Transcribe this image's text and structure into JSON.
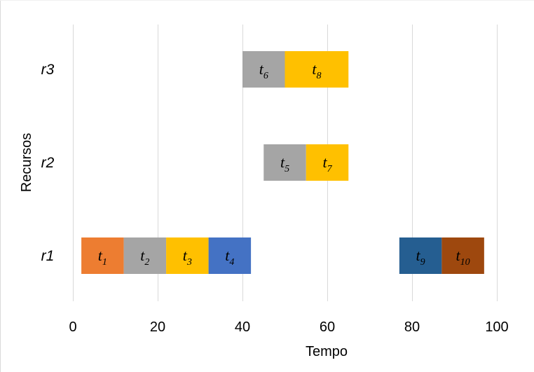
{
  "chart_data": {
    "type": "gantt",
    "xlabel": "Tempo",
    "ylabel": "Recursos",
    "xlim": [
      0,
      100
    ],
    "xticks": [
      0,
      20,
      40,
      60,
      80,
      100
    ],
    "grid": "vertical",
    "resources": [
      "r1",
      "r2",
      "r3"
    ],
    "tasks": [
      {
        "label": "t",
        "sub": "1",
        "resource": "r1",
        "start": 2,
        "end": 12,
        "color": "#ED7D31"
      },
      {
        "label": "t",
        "sub": "2",
        "resource": "r1",
        "start": 12,
        "end": 22,
        "color": "#A5A5A5"
      },
      {
        "label": "t",
        "sub": "3",
        "resource": "r1",
        "start": 22,
        "end": 32,
        "color": "#FFC000"
      },
      {
        "label": "t",
        "sub": "4",
        "resource": "r1",
        "start": 32,
        "end": 42,
        "color": "#4472C4"
      },
      {
        "label": "t",
        "sub": "5",
        "resource": "r2",
        "start": 45,
        "end": 55,
        "color": "#A5A5A5"
      },
      {
        "label": "t",
        "sub": "6",
        "resource": "r3",
        "start": 40,
        "end": 50,
        "color": "#A5A5A5"
      },
      {
        "label": "t",
        "sub": "7",
        "resource": "r2",
        "start": 55,
        "end": 65,
        "color": "#FFC000"
      },
      {
        "label": "t",
        "sub": "8",
        "resource": "r3",
        "start": 50,
        "end": 65,
        "color": "#FFC000"
      },
      {
        "label": "t",
        "sub": "9",
        "resource": "r1",
        "start": 77,
        "end": 87,
        "color": "#255E91"
      },
      {
        "label": "t",
        "sub": "10",
        "resource": "r1",
        "start": 87,
        "end": 97,
        "color": "#9E480E"
      }
    ]
  }
}
